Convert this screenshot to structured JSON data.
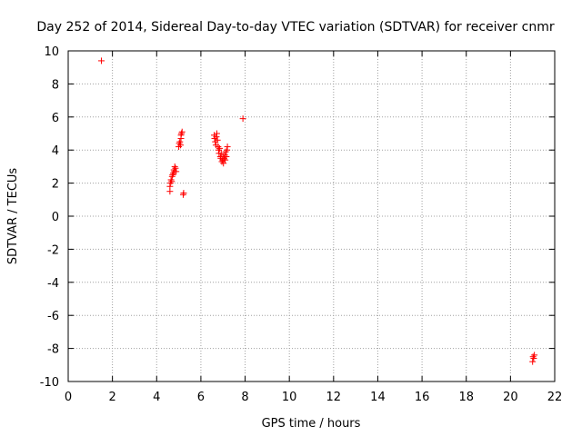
{
  "colors": {
    "series": "#ff0000",
    "grid": "#a0a0a0",
    "axis": "#000000",
    "background": "#ffffff"
  },
  "chart_data": {
    "type": "scatter",
    "title": "Day 252 of 2014, Sidereal Day-to-day VTEC variation (SDTVAR) for receiver cnmr",
    "xlabel": "GPS time / hours",
    "ylabel": "SDTVAR / TECUs",
    "xlim": [
      0,
      22
    ],
    "ylim": [
      -10,
      10
    ],
    "xticks": [
      0,
      2,
      4,
      6,
      8,
      10,
      12,
      14,
      16,
      18,
      20,
      22
    ],
    "yticks": [
      -10,
      -8,
      -6,
      -4,
      -2,
      0,
      2,
      4,
      6,
      8,
      10
    ],
    "xtick_labels": [
      "0",
      "2",
      "4",
      "6",
      "8",
      "10",
      "12",
      "14",
      "16",
      "18",
      "20",
      "22"
    ],
    "ytick_labels": [
      "-10",
      "-8",
      "-6",
      "-4",
      "-2",
      "0",
      "2",
      "4",
      "6",
      "8",
      "10"
    ],
    "grid": true,
    "marker": "plus",
    "series": [
      {
        "color": "#ff0000",
        "points": [
          [
            1.5,
            9.4
          ],
          [
            4.6,
            1.5
          ],
          [
            4.6,
            1.8
          ],
          [
            4.62,
            2.0
          ],
          [
            4.65,
            2.2
          ],
          [
            4.68,
            2.1
          ],
          [
            4.7,
            2.4
          ],
          [
            4.72,
            2.5
          ],
          [
            4.75,
            2.6
          ],
          [
            4.78,
            2.8
          ],
          [
            4.8,
            2.7
          ],
          [
            4.82,
            3.0
          ],
          [
            4.85,
            2.9
          ],
          [
            4.88,
            2.7
          ],
          [
            5.0,
            4.2
          ],
          [
            5.02,
            4.4
          ],
          [
            5.05,
            4.5
          ],
          [
            5.08,
            4.3
          ],
          [
            5.1,
            4.7
          ],
          [
            5.12,
            5.0
          ],
          [
            5.15,
            5.1
          ],
          [
            5.1,
            4.9
          ],
          [
            5.2,
            1.3
          ],
          [
            5.22,
            1.4
          ],
          [
            6.6,
            4.9
          ],
          [
            6.62,
            4.7
          ],
          [
            6.65,
            4.5
          ],
          [
            6.68,
            4.3
          ],
          [
            6.7,
            4.8
          ],
          [
            6.72,
            5.0
          ],
          [
            6.75,
            4.6
          ],
          [
            6.78,
            4.2
          ],
          [
            6.8,
            4.0
          ],
          [
            6.82,
            3.8
          ],
          [
            6.85,
            4.1
          ],
          [
            6.88,
            3.6
          ],
          [
            6.9,
            3.5
          ],
          [
            6.92,
            3.8
          ],
          [
            6.95,
            3.3
          ],
          [
            6.98,
            3.4
          ],
          [
            7.0,
            3.6
          ],
          [
            7.02,
            3.2
          ],
          [
            7.05,
            3.5
          ],
          [
            7.08,
            3.7
          ],
          [
            7.1,
            3.4
          ],
          [
            7.12,
            3.9
          ],
          [
            7.15,
            3.6
          ],
          [
            7.18,
            4.0
          ],
          [
            7.2,
            4.2
          ],
          [
            7.9,
            5.9
          ],
          [
            21.0,
            -8.8
          ],
          [
            21.02,
            -8.5
          ],
          [
            21.05,
            -8.6
          ],
          [
            21.08,
            -8.4
          ]
        ]
      }
    ]
  }
}
